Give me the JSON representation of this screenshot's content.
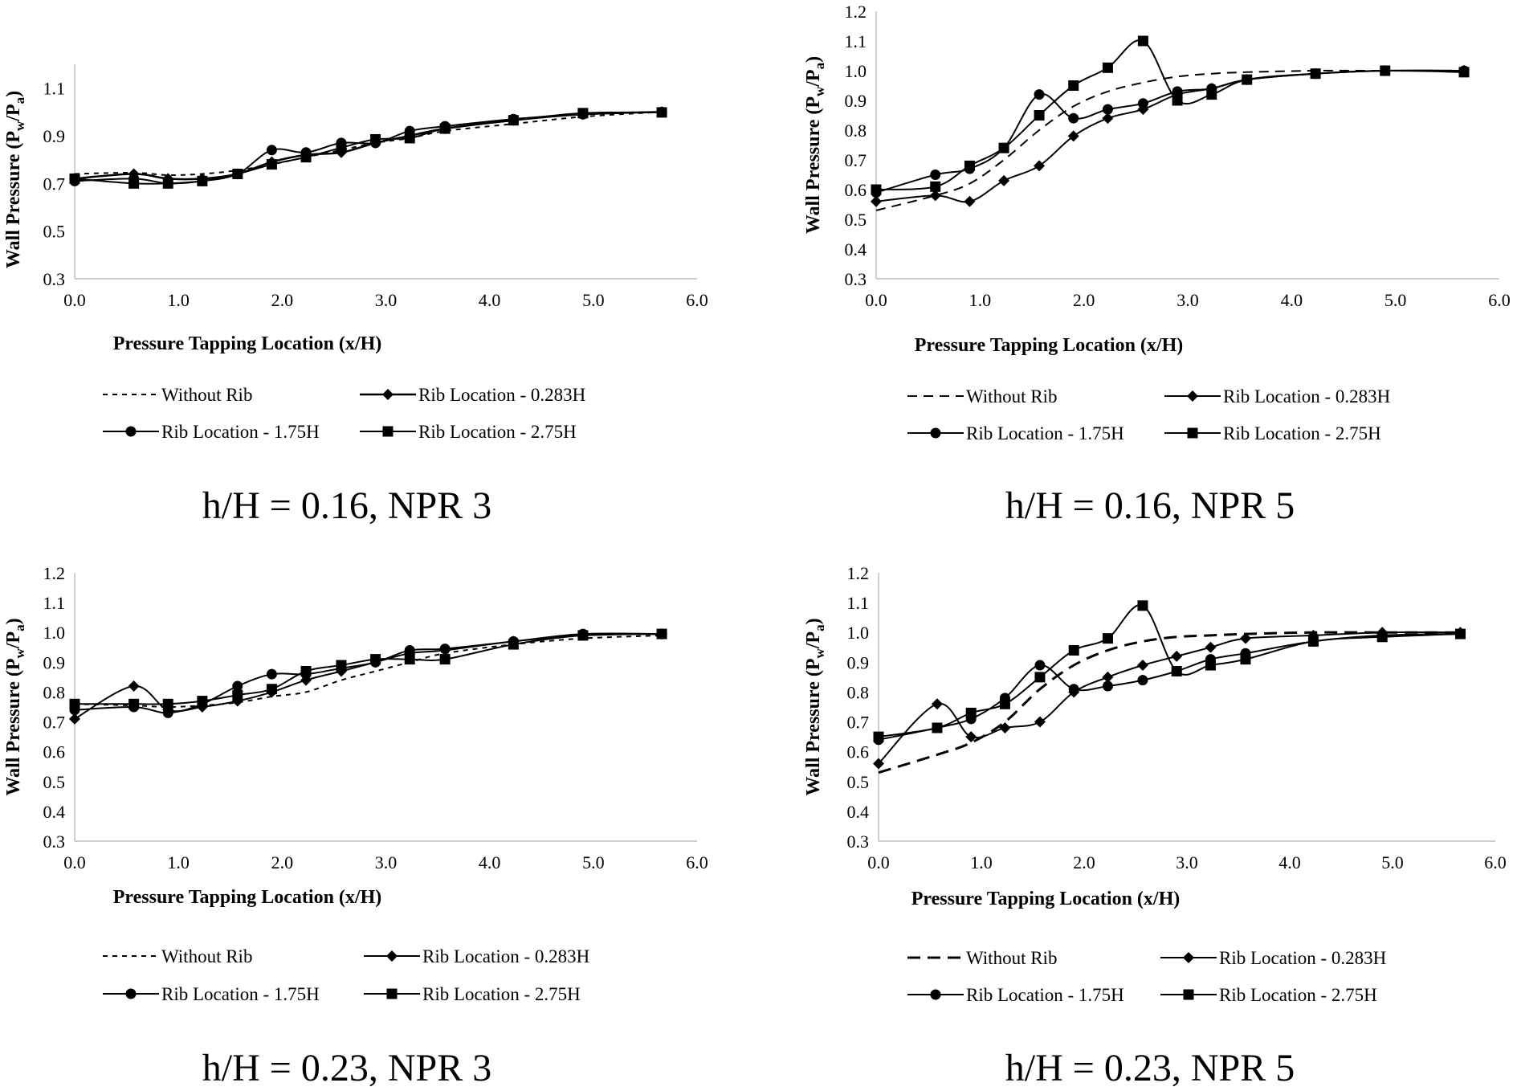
{
  "legend": {
    "without_rib": "Without Rib",
    "rib_0283": "Rib Location - 0.283H",
    "rib_175": "Rib Location - 1.75H",
    "rib_275": "Rib Location - 2.75H"
  },
  "chart_data": [
    {
      "type": "line",
      "caption": "h/H = 0.16, NPR 3",
      "xlabel": "Pressure Tapping Location (x/H)",
      "ylabel_main": "Wall Pressure (P",
      "ylabel_sub_w": "w",
      "ylabel_mid": "/P",
      "ylabel_sub_a": "a",
      "ylabel_end": ")",
      "xlim": [
        0,
        6
      ],
      "ylim": [
        0.3,
        1.2
      ],
      "x_ticks": [
        "0.0",
        "1.0",
        "2.0",
        "3.0",
        "4.0",
        "5.0",
        "6.0"
      ],
      "y_ticks": [
        "0.3",
        "0.5",
        "0.7",
        "0.9",
        "1.1"
      ],
      "y_tick_values": [
        0.3,
        0.5,
        0.7,
        0.9,
        1.1
      ],
      "series": [
        {
          "key": "without_rib",
          "marker": "none",
          "dash": "6,6",
          "width": 2,
          "x": [
            0,
            0.57,
            0.9,
            1.23,
            1.57,
            1.9,
            2.23,
            2.57,
            2.9,
            3.23,
            3.57,
            4.23,
            4.9,
            5.66
          ],
          "y": [
            0.74,
            0.745,
            0.735,
            0.74,
            0.755,
            0.78,
            0.81,
            0.84,
            0.87,
            0.89,
            0.92,
            0.95,
            0.98,
            1.0
          ]
        },
        {
          "key": "rib_0283",
          "marker": "diamond",
          "dash": "",
          "width": 2.5,
          "x": [
            0,
            0.57,
            0.9,
            1.23,
            1.57,
            1.9,
            2.23,
            2.57,
            2.9,
            3.23,
            3.57,
            4.23,
            4.9,
            5.66
          ],
          "y": [
            0.72,
            0.74,
            0.72,
            0.72,
            0.74,
            0.79,
            0.82,
            0.83,
            0.87,
            0.9,
            0.93,
            0.965,
            0.99,
            1.0
          ]
        },
        {
          "key": "rib_175",
          "marker": "circle",
          "dash": "",
          "width": 2,
          "x": [
            0,
            0.57,
            0.9,
            1.23,
            1.57,
            1.9,
            2.23,
            2.57,
            2.9,
            3.23,
            3.57,
            4.23,
            4.9,
            5.66
          ],
          "y": [
            0.71,
            0.72,
            0.7,
            0.71,
            0.74,
            0.84,
            0.83,
            0.87,
            0.87,
            0.92,
            0.94,
            0.97,
            0.99,
            1.0
          ]
        },
        {
          "key": "rib_275",
          "marker": "square",
          "dash": "",
          "width": 2,
          "x": [
            0,
            0.57,
            0.9,
            1.23,
            1.57,
            1.9,
            2.23,
            2.57,
            2.9,
            3.23,
            3.57,
            4.23,
            4.9,
            5.66
          ],
          "y": [
            0.72,
            0.7,
            0.7,
            0.71,
            0.74,
            0.78,
            0.81,
            0.85,
            0.885,
            0.89,
            0.93,
            0.965,
            0.995,
            0.998
          ]
        }
      ]
    },
    {
      "type": "line",
      "caption": "h/H = 0.16, NPR 5",
      "xlabel": "Pressure Tapping Location (x/H)",
      "ylabel_main": "Wall Pressure (P",
      "ylabel_sub_w": "w",
      "ylabel_mid": "/P",
      "ylabel_sub_a": "a",
      "ylabel_end": ")",
      "xlim": [
        0,
        6
      ],
      "ylim": [
        0.3,
        1.2
      ],
      "x_ticks": [
        "0.0",
        "1.0",
        "2.0",
        "3.0",
        "4.0",
        "5.0",
        "6.0"
      ],
      "y_ticks": [
        "0.3",
        "0.4",
        "0.5",
        "0.6",
        "0.7",
        "0.8",
        "0.9",
        "1.0",
        "1.1",
        "1.2"
      ],
      "y_tick_values": [
        0.3,
        0.4,
        0.5,
        0.6,
        0.7,
        0.8,
        0.9,
        1.0,
        1.1,
        1.2
      ],
      "series": [
        {
          "key": "without_rib",
          "marker": "none",
          "dash": "12,8",
          "width": 2,
          "x": [
            0,
            0.57,
            0.9,
            1.23,
            1.57,
            1.9,
            2.23,
            2.57,
            2.9,
            3.23,
            3.57,
            4.23,
            4.9,
            5.66
          ],
          "y": [
            0.53,
            0.58,
            0.62,
            0.7,
            0.8,
            0.88,
            0.93,
            0.96,
            0.98,
            0.99,
            0.995,
            1.0,
            1.0,
            1.0
          ]
        },
        {
          "key": "rib_0283",
          "marker": "diamond",
          "dash": "",
          "width": 2,
          "x": [
            0,
            0.57,
            0.9,
            1.23,
            1.57,
            1.9,
            2.23,
            2.57,
            2.9,
            3.23,
            3.57,
            4.23,
            4.9,
            5.66
          ],
          "y": [
            0.56,
            0.58,
            0.56,
            0.63,
            0.68,
            0.78,
            0.84,
            0.87,
            0.92,
            0.94,
            0.97,
            0.99,
            1.0,
            1.0
          ]
        },
        {
          "key": "rib_175",
          "marker": "circle",
          "dash": "",
          "width": 2,
          "x": [
            0,
            0.57,
            0.9,
            1.23,
            1.57,
            1.9,
            2.23,
            2.57,
            2.9,
            3.23,
            3.57,
            4.23,
            4.9,
            5.66
          ],
          "y": [
            0.59,
            0.65,
            0.67,
            0.74,
            0.92,
            0.84,
            0.87,
            0.89,
            0.93,
            0.94,
            0.97,
            0.99,
            1.0,
            1.0
          ]
        },
        {
          "key": "rib_275",
          "marker": "square",
          "dash": "",
          "width": 2,
          "x": [
            0,
            0.57,
            0.9,
            1.23,
            1.57,
            1.9,
            2.23,
            2.57,
            2.9,
            3.23,
            3.57,
            4.23,
            4.9,
            5.66
          ],
          "y": [
            0.6,
            0.61,
            0.68,
            0.74,
            0.85,
            0.95,
            1.01,
            1.1,
            0.9,
            0.92,
            0.97,
            0.99,
            1.0,
            0.995
          ]
        }
      ]
    },
    {
      "type": "line",
      "caption": "h/H = 0.23, NPR 3",
      "xlabel": "Pressure Tapping Location (x/H)",
      "ylabel_main": "Wall Pressure (P",
      "ylabel_sub_w": "w",
      "ylabel_mid": "/P",
      "ylabel_sub_a": "a",
      "ylabel_end": ")",
      "xlim": [
        0,
        6
      ],
      "ylim": [
        0.3,
        1.2
      ],
      "x_ticks": [
        "0.0",
        "1.0",
        "2.0",
        "3.0",
        "4.0",
        "5.0",
        "6.0"
      ],
      "y_ticks": [
        "0.3",
        "0.4",
        "0.5",
        "0.6",
        "0.7",
        "0.8",
        "0.9",
        "1.0",
        "1.1",
        "1.2"
      ],
      "y_tick_values": [
        0.3,
        0.4,
        0.5,
        0.6,
        0.7,
        0.8,
        0.9,
        1.0,
        1.1,
        1.2
      ],
      "series": [
        {
          "key": "without_rib",
          "marker": "none",
          "dash": "6,6",
          "width": 2,
          "x": [
            0,
            0.57,
            0.9,
            1.23,
            1.57,
            1.9,
            2.23,
            2.57,
            2.9,
            3.23,
            3.57,
            4.23,
            4.9,
            5.66
          ],
          "y": [
            0.76,
            0.755,
            0.75,
            0.755,
            0.765,
            0.785,
            0.8,
            0.84,
            0.87,
            0.9,
            0.93,
            0.96,
            0.98,
            0.99
          ]
        },
        {
          "key": "rib_0283",
          "marker": "diamond",
          "dash": "",
          "width": 2,
          "x": [
            0,
            0.57,
            0.9,
            1.23,
            1.57,
            1.9,
            2.23,
            2.57,
            2.9,
            3.23,
            3.57,
            4.23,
            4.9,
            5.66
          ],
          "y": [
            0.71,
            0.82,
            0.74,
            0.75,
            0.77,
            0.8,
            0.84,
            0.87,
            0.9,
            0.93,
            0.94,
            0.97,
            0.99,
            0.995
          ]
        },
        {
          "key": "rib_175",
          "marker": "circle",
          "dash": "",
          "width": 2,
          "x": [
            0,
            0.57,
            0.9,
            1.23,
            1.57,
            1.9,
            2.23,
            2.57,
            2.9,
            3.23,
            3.57,
            4.23,
            4.9,
            5.66
          ],
          "y": [
            0.74,
            0.75,
            0.73,
            0.76,
            0.82,
            0.86,
            0.86,
            0.88,
            0.9,
            0.94,
            0.945,
            0.97,
            0.995,
            0.995
          ]
        },
        {
          "key": "rib_275",
          "marker": "square",
          "dash": "",
          "width": 2,
          "x": [
            0,
            0.57,
            0.9,
            1.23,
            1.57,
            1.9,
            2.23,
            2.57,
            2.9,
            3.23,
            3.57,
            4.23,
            4.9,
            5.66
          ],
          "y": [
            0.76,
            0.76,
            0.76,
            0.77,
            0.79,
            0.81,
            0.87,
            0.89,
            0.91,
            0.91,
            0.91,
            0.96,
            0.99,
            0.995
          ]
        }
      ]
    },
    {
      "type": "line",
      "caption": "h/H = 0.23, NPR 5",
      "xlabel": "Pressure Tapping Location (x/H)",
      "ylabel_main": "Wall Pressure (P",
      "ylabel_sub_w": "w",
      "ylabel_mid": "/P",
      "ylabel_sub_a": "a",
      "ylabel_end": ")",
      "xlim": [
        0,
        6
      ],
      "ylim": [
        0.3,
        1.2
      ],
      "x_ticks": [
        "0.0",
        "1.0",
        "2.0",
        "3.0",
        "4.0",
        "5.0",
        "6.0"
      ],
      "y_ticks": [
        "0.3",
        "0.4",
        "0.5",
        "0.6",
        "0.7",
        "0.8",
        "0.9",
        "1.0",
        "1.1",
        "1.2"
      ],
      "y_tick_values": [
        0.3,
        0.4,
        0.5,
        0.6,
        0.7,
        0.8,
        0.9,
        1.0,
        1.1,
        1.2
      ],
      "series": [
        {
          "key": "without_rib",
          "marker": "none",
          "dash": "16,9",
          "width": 3,
          "x": [
            0,
            0.57,
            0.9,
            1.23,
            1.57,
            1.9,
            2.23,
            2.57,
            2.9,
            3.23,
            3.57,
            4.23,
            4.9,
            5.66
          ],
          "y": [
            0.53,
            0.59,
            0.63,
            0.7,
            0.81,
            0.89,
            0.94,
            0.97,
            0.985,
            0.99,
            0.995,
            1.0,
            1.0,
            1.0
          ]
        },
        {
          "key": "rib_0283",
          "marker": "diamond",
          "dash": "",
          "width": 2,
          "x": [
            0,
            0.57,
            0.9,
            1.23,
            1.57,
            1.9,
            2.23,
            2.57,
            2.9,
            3.23,
            3.57,
            4.23,
            4.9,
            5.66
          ],
          "y": [
            0.56,
            0.76,
            0.65,
            0.68,
            0.7,
            0.8,
            0.85,
            0.89,
            0.92,
            0.95,
            0.98,
            0.99,
            1.0,
            1.0
          ]
        },
        {
          "key": "rib_175",
          "marker": "circle",
          "dash": "",
          "width": 2,
          "x": [
            0,
            0.57,
            0.9,
            1.23,
            1.57,
            1.9,
            2.23,
            2.57,
            2.9,
            3.23,
            3.57,
            4.23,
            4.9,
            5.66
          ],
          "y": [
            0.64,
            0.68,
            0.71,
            0.78,
            0.89,
            0.81,
            0.82,
            0.84,
            0.87,
            0.91,
            0.93,
            0.97,
            0.99,
            0.995
          ]
        },
        {
          "key": "rib_275",
          "marker": "square",
          "dash": "",
          "width": 2,
          "x": [
            0,
            0.57,
            0.9,
            1.23,
            1.57,
            1.9,
            2.23,
            2.57,
            2.9,
            3.23,
            3.57,
            4.23,
            4.9,
            5.66
          ],
          "y": [
            0.65,
            0.68,
            0.73,
            0.76,
            0.85,
            0.94,
            0.98,
            1.09,
            0.87,
            0.89,
            0.91,
            0.97,
            0.985,
            0.995
          ]
        }
      ]
    }
  ]
}
